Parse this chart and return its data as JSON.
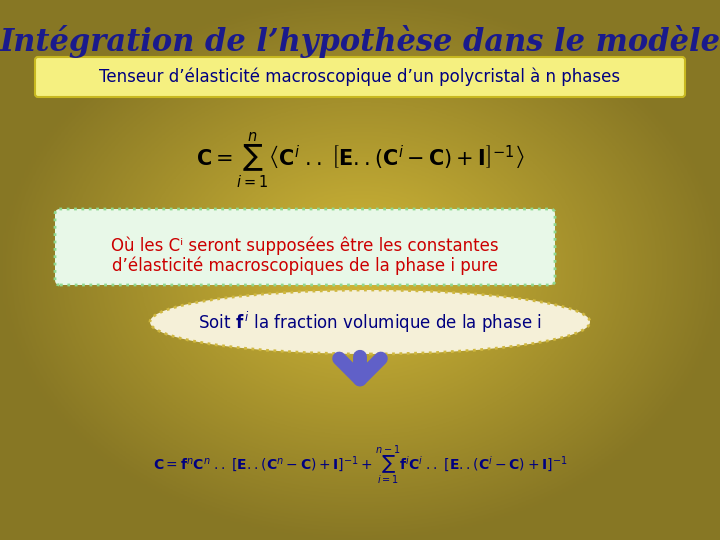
{
  "title": "Intégration de l’hypothèse dans le modèle",
  "title_color": "#1a1a8c",
  "subtitle_box_text": "Tenseur d’élasticité macroscopique d’un polycristal à n phases",
  "subtitle_box_bg": "#f5f080",
  "subtitle_box_edge": "#c8b820",
  "note_box_text1": "Où les Cⁱ seront supposées être les constantes",
  "note_box_text2": "d’élasticité macroscopiques de la phase i pure",
  "note_box_bg": "#e8f8e8",
  "note_box_edge": "#90d890",
  "note_text_color": "#cc0000",
  "oval_bg": "#f5f0d8",
  "oval_edge": "#d0b840",
  "oval_text_color": "#000080",
  "formula2_color": "#000080",
  "arrow_color": "#6060c8"
}
